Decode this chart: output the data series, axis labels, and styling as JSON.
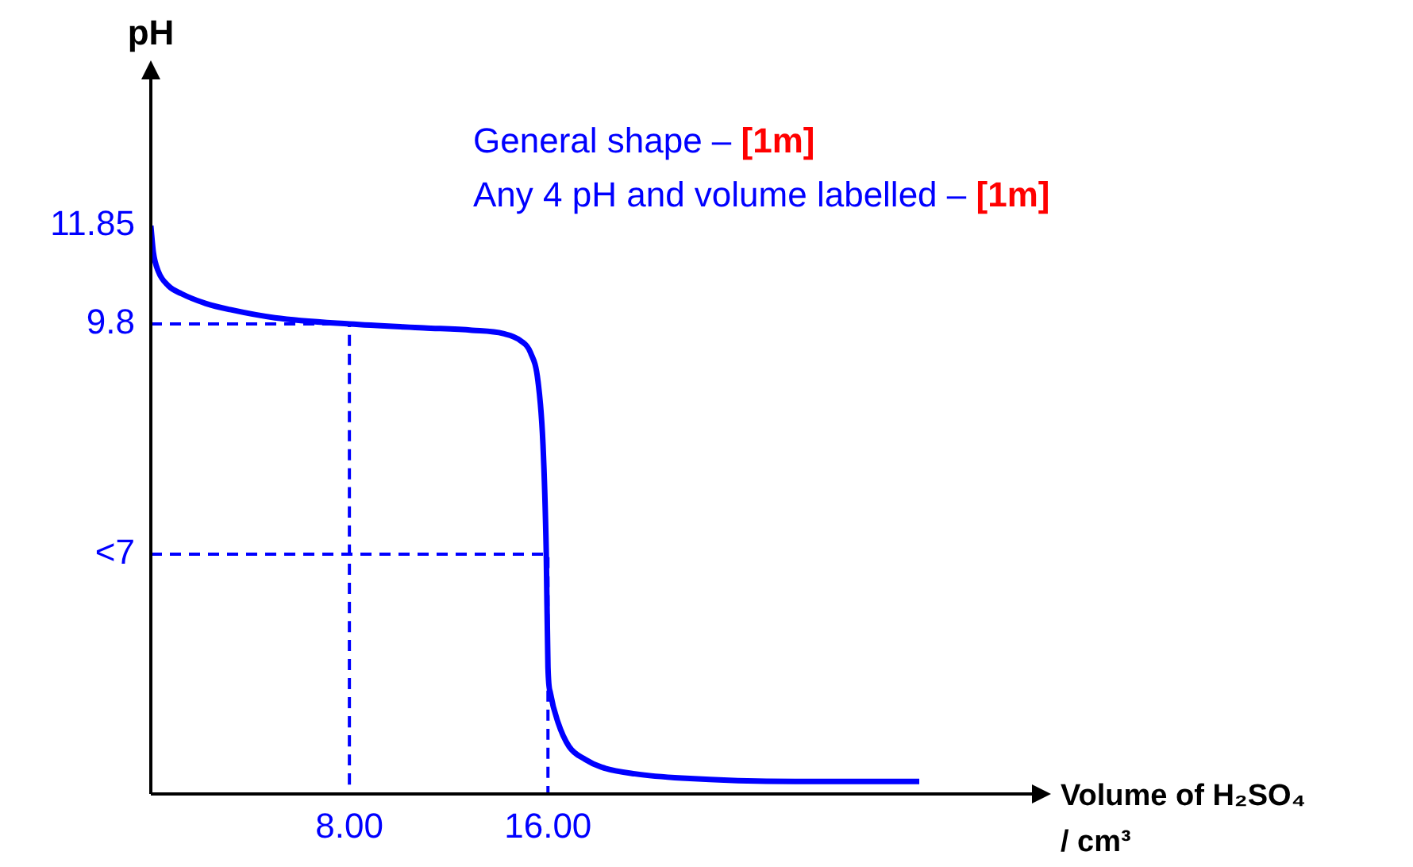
{
  "chart_data": {
    "type": "line",
    "xlabel": "Volume of H₂SO₄ / cm³",
    "ylabel": "pH",
    "xlim": [
      0,
      35.5
    ],
    "ylim": [
      0,
      14.9
    ],
    "xticks": [
      {
        "value": 8,
        "label": "8.00"
      },
      {
        "value": 16,
        "label": "16.00"
      }
    ],
    "yticks": [
      {
        "value": 5,
        "label": "<7"
      },
      {
        "value": 9.8,
        "label": "9.8"
      },
      {
        "value": 11.85,
        "label": "11.85"
      }
    ],
    "marker": "none",
    "series": [
      {
        "color": "#0000ff",
        "line_style": "solid",
        "x": [
          0,
          0.1,
          0.3,
          0.7,
          1.24,
          2.2,
          3.19,
          5,
          8,
          11,
          12.94,
          14.2,
          14.9,
          15.3,
          15.6,
          15.8,
          15.93,
          16,
          16.1,
          16.4,
          16.85,
          17.5,
          18.15,
          19.5,
          21.4,
          25.95,
          30.96
        ],
        "values": [
          11.85,
          11.3,
          10.9,
          10.6,
          10.43,
          10.23,
          10.1,
          9.93,
          9.8,
          9.72,
          9.67,
          9.6,
          9.45,
          9.2,
          8.6,
          7.28,
          5.07,
          2.65,
          2.1,
          1.5,
          0.99,
          0.72,
          0.56,
          0.42,
          0.33,
          0.26,
          0.26
        ]
      },
      {
        "color": "#0000ff",
        "line_style": "dashed",
        "x": [
          0,
          8,
          8
        ],
        "values": [
          9.8,
          9.8,
          0
        ]
      },
      {
        "color": "#0000ff",
        "line_style": "dashed",
        "x": [
          0,
          16,
          16
        ],
        "values": [
          5,
          5,
          0
        ]
      }
    ],
    "annotations": [
      "General shape – [1m]",
      "Any 4 pH and volume labelled – [1m]"
    ]
  }
}
